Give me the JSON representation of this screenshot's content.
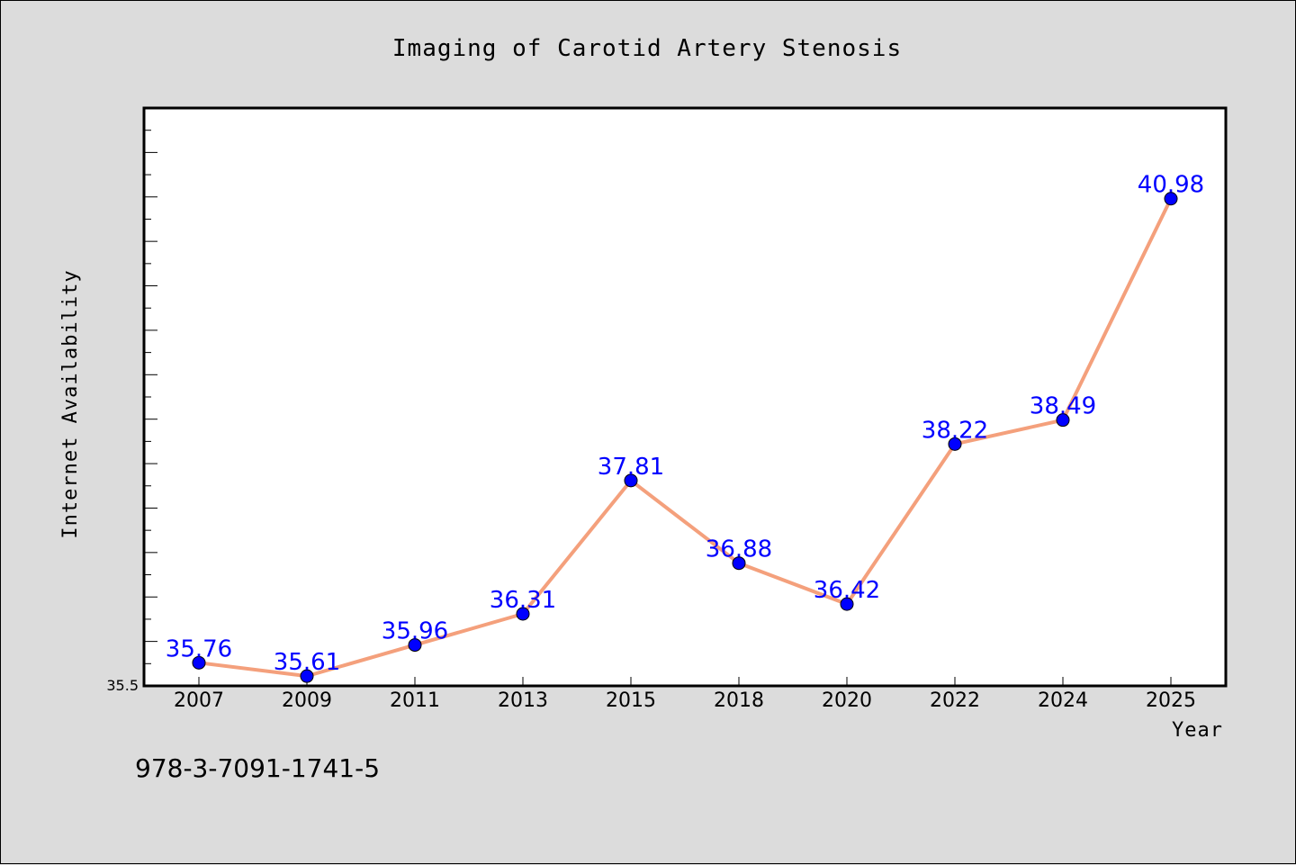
{
  "colors": {
    "background": "#dcdcdc",
    "plot_background": "#ffffff",
    "line": "#f4a07c",
    "marker": "#0000ff",
    "data_label": "#0000ff"
  },
  "footer": {
    "isbn": "978-3-7091-1741-5"
  },
  "chart_data": {
    "type": "line",
    "title": "Imaging of Carotid Artery Stenosis",
    "xlabel": "Year",
    "ylabel": "Internet Availability",
    "categories": [
      "2007",
      "2009",
      "2011",
      "2013",
      "2015",
      "2018",
      "2020",
      "2022",
      "2024",
      "2025"
    ],
    "series": [
      {
        "values": [
          35.76,
          35.61,
          35.96,
          36.31,
          37.81,
          36.88,
          36.42,
          38.22,
          38.49,
          40.98
        ],
        "labels": [
          "35.76",
          "35.61",
          "35.96",
          "36.31",
          "37.81",
          "36.88",
          "36.42",
          "38.22",
          "38.49",
          "40.98"
        ]
      }
    ],
    "ylim": [
      35.5,
      42.0
    ],
    "y_tick_labels": [
      "35.5"
    ],
    "grid": false,
    "legend": "none",
    "markers": true,
    "data_labels": true
  }
}
